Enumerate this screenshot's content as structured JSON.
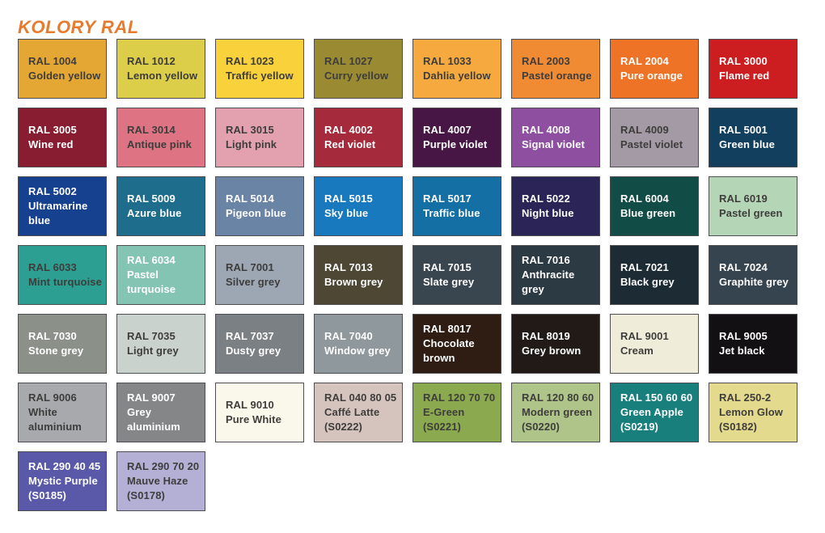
{
  "title": "KOLORY RAL",
  "title_color": "#E87A2E",
  "text_dark": "#3E3D3B",
  "text_light": "#FFFFFF",
  "swatches": [
    {
      "code": "RAL 1004",
      "name": "Golden yellow",
      "color": "#E5A733",
      "text": "dark"
    },
    {
      "code": "RAL 1012",
      "name": "Lemon yellow",
      "color": "#DCCE49",
      "text": "dark"
    },
    {
      "code": "RAL 1023",
      "name": "Traffic yellow",
      "color": "#F9D13B",
      "text": "dark"
    },
    {
      "code": "RAL 1027",
      "name": "Curry yellow",
      "color": "#9A8B33",
      "text": "dark"
    },
    {
      "code": "RAL 1033",
      "name": "Dahlia yellow",
      "color": "#F5A93F",
      "text": "dark"
    },
    {
      "code": "RAL 2003",
      "name": "Pastel orange",
      "color": "#F08A33",
      "text": "dark"
    },
    {
      "code": "RAL 2004",
      "name": "Pure orange",
      "color": "#EE7326",
      "text": "light"
    },
    {
      "code": "RAL 3000",
      "name": "Flame red",
      "color": "#CC1D21",
      "text": "light"
    },
    {
      "code": "RAL 3005",
      "name": "Wine red",
      "color": "#881C30",
      "text": "light"
    },
    {
      "code": "RAL 3014",
      "name": "Antique pink",
      "color": "#DE7384",
      "text": "dark"
    },
    {
      "code": "RAL 3015",
      "name": "Light pink",
      "color": "#E3A0AE",
      "text": "dark"
    },
    {
      "code": "RAL 4002",
      "name": "Red violet",
      "color": "#A42A3C",
      "text": "light"
    },
    {
      "code": "RAL 4007",
      "name": "Purple violet",
      "color": "#471645",
      "text": "light"
    },
    {
      "code": "RAL 4008",
      "name": "Signal violet",
      "color": "#8E4FA0",
      "text": "light"
    },
    {
      "code": "RAL 4009",
      "name": "Pastel violet",
      "color": "#A49AA5",
      "text": "dark"
    },
    {
      "code": "RAL 5001",
      "name": "Green blue",
      "color": "#133F5E",
      "text": "light"
    },
    {
      "code": "RAL 5002",
      "name": "Ultramarine blue",
      "color": "#16418E",
      "text": "light"
    },
    {
      "code": "RAL 5009",
      "name": "Azure blue",
      "color": "#1E6D8D",
      "text": "light"
    },
    {
      "code": "RAL 5014",
      "name": "Pigeon blue",
      "color": "#6A84A5",
      "text": "light"
    },
    {
      "code": "RAL 5015",
      "name": "Sky blue",
      "color": "#1879BF",
      "text": "light"
    },
    {
      "code": "RAL 5017",
      "name": "Traffic blue",
      "color": "#146FA5",
      "text": "light"
    },
    {
      "code": "RAL 5022",
      "name": "Night blue",
      "color": "#2A2457",
      "text": "light"
    },
    {
      "code": "RAL 6004",
      "name": "Blue green",
      "color": "#114C46",
      "text": "light"
    },
    {
      "code": "RAL 6019",
      "name": "Pastel green",
      "color": "#B5D6B6",
      "text": "dark"
    },
    {
      "code": "RAL 6033",
      "name": "Mint turquoise",
      "color": "#2C9E92",
      "text": "dark"
    },
    {
      "code": "RAL 6034",
      "name": "Pastel turquoise",
      "color": "#84C4B3",
      "text": "light"
    },
    {
      "code": "RAL 7001",
      "name": "Silver grey",
      "color": "#9DA7B4",
      "text": "dark"
    },
    {
      "code": "RAL 7013",
      "name": "Brown grey",
      "color": "#4D4734",
      "text": "light"
    },
    {
      "code": "RAL 7015",
      "name": "Slate grey",
      "color": "#3A464F",
      "text": "light"
    },
    {
      "code": "RAL 7016",
      "name": "Anthracite grey",
      "color": "#2C3A43",
      "text": "light"
    },
    {
      "code": "RAL 7021",
      "name": "Black grey",
      "color": "#1D2B35",
      "text": "light"
    },
    {
      "code": "RAL 7024",
      "name": "Graphite grey",
      "color": "#36444F",
      "text": "light"
    },
    {
      "code": "RAL 7030",
      "name": "Stone grey",
      "color": "#8B9189",
      "text": "light"
    },
    {
      "code": "RAL 7035",
      "name": "Light grey",
      "color": "#CAD2CD",
      "text": "dark"
    },
    {
      "code": "RAL 7037",
      "name": "Dusty grey",
      "color": "#7B8084",
      "text": "light"
    },
    {
      "code": "RAL 7040",
      "name": "Window grey",
      "color": "#8F989D",
      "text": "light"
    },
    {
      "code": "RAL 8017",
      "name": "Chocolate brown",
      "color": "#2F1D13",
      "text": "light"
    },
    {
      "code": "RAL 8019",
      "name": "Grey brown",
      "color": "#211A16",
      "text": "light"
    },
    {
      "code": "RAL 9001",
      "name": "Cream",
      "color": "#EFECD9",
      "text": "dark"
    },
    {
      "code": "RAL 9005",
      "name": "Jet black",
      "color": "#131013",
      "text": "light"
    },
    {
      "code": "RAL 9006",
      "name": "White aluminium",
      "color": "#A7A9AC",
      "text": "dark"
    },
    {
      "code": "RAL 9007",
      "name": "Grey aluminium",
      "color": "#858688",
      "text": "light"
    },
    {
      "code": "RAL 9010",
      "name": "Pure White",
      "color": "#F9F8EA",
      "text": "dark"
    },
    {
      "code": "RAL 040 80 05",
      "name": "Caffé Latte",
      "sub": "(S0222)",
      "color": "#D5C4BE",
      "text": "dark"
    },
    {
      "code": "RAL 120 70 70",
      "name": "E-Green",
      "sub": "(S0221)",
      "color": "#8BA94E",
      "text": "dark"
    },
    {
      "code": "RAL 120 80 60",
      "name": "Modern green",
      "sub": "(S0220)",
      "color": "#AEC489",
      "text": "dark"
    },
    {
      "code": "RAL 150 60 60",
      "name": "Green Apple",
      "sub": "(S0219)",
      "color": "#187F7C",
      "text": "light"
    },
    {
      "code": "RAL 250-2",
      "name": "Lemon Glow",
      "sub": "(S0182)",
      "color": "#E4DA8E",
      "text": "dark"
    },
    {
      "code": "RAL 290 40 45",
      "name": "Mystic Purple",
      "sub": "(S0185)",
      "color": "#5A58A8",
      "text": "light"
    },
    {
      "code": "RAL 290 70 20",
      "name": "Mauve Haze",
      "sub": "(S0178)",
      "color": "#B3AFD5",
      "text": "dark"
    }
  ]
}
